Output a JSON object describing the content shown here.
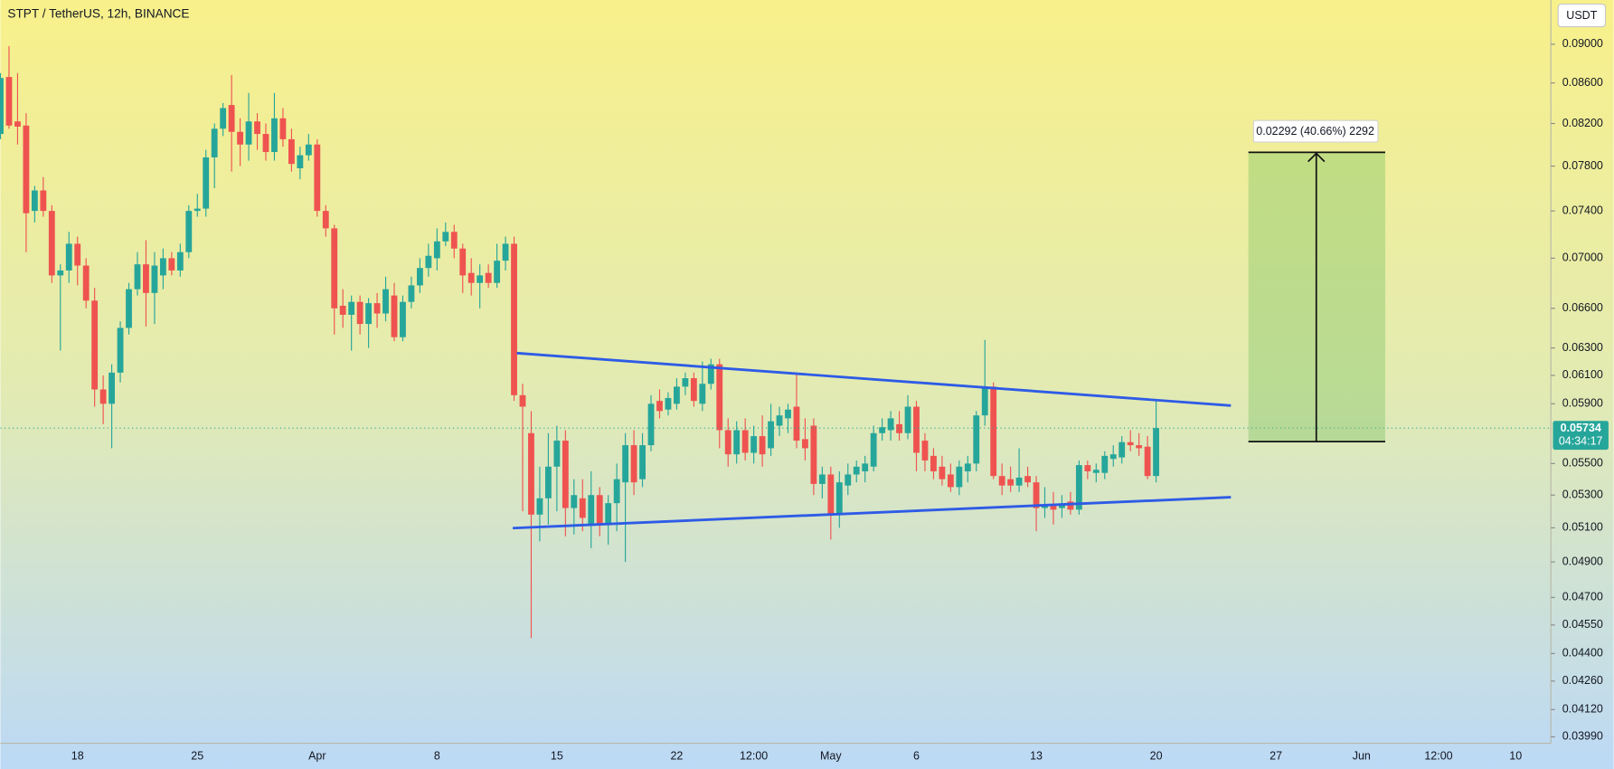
{
  "chart_data": {
    "type": "candlestick",
    "title": "STPT / TetherUS, 12h, BINANCE",
    "currency": "USDT",
    "log_scale": true,
    "grid": false,
    "up_color": "#26a69a",
    "down_color": "#ef5350",
    "last_price": 0.05734,
    "countdown": "04:34:17",
    "measure_label": "0.02292 (40.66%) 2292",
    "ylim": [
      0.0396,
      0.0948
    ],
    "yticks": [
      {
        "value": 0.09,
        "label": "0.09000"
      },
      {
        "value": 0.086,
        "label": "0.08600"
      },
      {
        "value": 0.082,
        "label": "0.08200"
      },
      {
        "value": 0.078,
        "label": "0.07800"
      },
      {
        "value": 0.074,
        "label": "0.07400"
      },
      {
        "value": 0.07,
        "label": "0.07000"
      },
      {
        "value": 0.066,
        "label": "0.06600"
      },
      {
        "value": 0.063,
        "label": "0.06300"
      },
      {
        "value": 0.061,
        "label": "0.06100"
      },
      {
        "value": 0.059,
        "label": "0.05900"
      },
      {
        "value": 0.055,
        "label": "0.05500"
      },
      {
        "value": 0.053,
        "label": "0.05300"
      },
      {
        "value": 0.051,
        "label": "0.05100"
      },
      {
        "value": 0.049,
        "label": "0.04900"
      },
      {
        "value": 0.047,
        "label": "0.04700"
      },
      {
        "value": 0.0455,
        "label": "0.04550"
      },
      {
        "value": 0.044,
        "label": "0.04400"
      },
      {
        "value": 0.0426,
        "label": "0.04260"
      },
      {
        "value": 0.0412,
        "label": "0.04120"
      },
      {
        "value": 0.0399,
        "label": "0.03990"
      }
    ],
    "categories": [
      null,
      null,
      null,
      null,
      null,
      null,
      null,
      null,
      null,
      "18",
      null,
      null,
      null,
      null,
      null,
      null,
      null,
      null,
      null,
      null,
      null,
      null,
      null,
      "25",
      null,
      null,
      null,
      null,
      null,
      null,
      null,
      null,
      null,
      null,
      null,
      null,
      null,
      "Apr",
      null,
      null,
      null,
      null,
      null,
      null,
      null,
      null,
      null,
      null,
      null,
      null,
      null,
      "8",
      null,
      null,
      null,
      null,
      null,
      null,
      null,
      null,
      null,
      null,
      null,
      null,
      null,
      "15",
      null,
      null,
      null,
      null,
      null,
      null,
      null,
      null,
      null,
      null,
      null,
      null,
      null,
      "22",
      null,
      null,
      null,
      null,
      null,
      null,
      null,
      null,
      "12:00",
      null,
      null,
      null,
      null,
      null,
      null,
      null,
      null,
      "May",
      null,
      null,
      null,
      null,
      null,
      null,
      null,
      null,
      null,
      "6",
      null,
      null,
      null,
      null,
      null,
      null,
      null,
      null,
      null,
      null,
      null,
      null,
      null,
      "13",
      null,
      null,
      null,
      null,
      null,
      null,
      null,
      null,
      null,
      null,
      null,
      null,
      null,
      "20",
      null,
      null,
      null,
      null,
      null,
      null,
      null,
      null,
      null,
      null,
      null,
      null,
      null,
      "27",
      null,
      null,
      null,
      null,
      null,
      null,
      null,
      null,
      null,
      "Jun",
      null,
      null,
      null,
      null,
      null,
      null,
      null,
      null,
      "12:00",
      null,
      null,
      null,
      null,
      null,
      null,
      null,
      null,
      "10"
    ],
    "values": [
      [
        0.081,
        0.087,
        0.0805,
        0.0865
      ],
      [
        0.0866,
        0.0898,
        0.0815,
        0.0818
      ],
      [
        0.0822,
        0.087,
        0.08,
        0.0817
      ],
      [
        0.0818,
        0.083,
        0.0705,
        0.0738
      ],
      [
        0.074,
        0.0762,
        0.073,
        0.0758
      ],
      [
        0.0758,
        0.077,
        0.0735,
        0.074
      ],
      [
        0.074,
        0.0745,
        0.068,
        0.0686
      ],
      [
        0.0686,
        0.0695,
        0.0628,
        0.069
      ],
      [
        0.069,
        0.0722,
        0.068,
        0.0712
      ],
      [
        0.0712,
        0.0718,
        0.0678,
        0.0694
      ],
      [
        0.0694,
        0.07,
        0.066,
        0.0666
      ],
      [
        0.0666,
        0.0676,
        0.0588,
        0.06
      ],
      [
        0.06,
        0.061,
        0.0576,
        0.059
      ],
      [
        0.059,
        0.0618,
        0.056,
        0.0612
      ],
      [
        0.0612,
        0.065,
        0.0605,
        0.0645
      ],
      [
        0.0645,
        0.068,
        0.064,
        0.0675
      ],
      [
        0.0675,
        0.0705,
        0.067,
        0.0695
      ],
      [
        0.0695,
        0.0715,
        0.0646,
        0.0672
      ],
      [
        0.0672,
        0.0705,
        0.0648,
        0.0694
      ],
      [
        0.0686,
        0.0708,
        0.0675,
        0.07
      ],
      [
        0.07,
        0.0705,
        0.0686,
        0.069
      ],
      [
        0.069,
        0.0712,
        0.0685,
        0.0705
      ],
      [
        0.0705,
        0.0745,
        0.07,
        0.074
      ],
      [
        0.074,
        0.0755,
        0.0735,
        0.0742
      ],
      [
        0.0742,
        0.0795,
        0.0735,
        0.0788
      ],
      [
        0.0788,
        0.082,
        0.076,
        0.0815
      ],
      [
        0.0815,
        0.084,
        0.0808,
        0.0835
      ],
      [
        0.0838,
        0.0868,
        0.0775,
        0.0812
      ],
      [
        0.0812,
        0.0825,
        0.078,
        0.08
      ],
      [
        0.08,
        0.085,
        0.0785,
        0.0822
      ],
      [
        0.0822,
        0.083,
        0.0795,
        0.081
      ],
      [
        0.081,
        0.082,
        0.0785,
        0.0793
      ],
      [
        0.0793,
        0.085,
        0.0785,
        0.0825
      ],
      [
        0.0825,
        0.0835,
        0.0798,
        0.0805
      ],
      [
        0.0805,
        0.0815,
        0.0775,
        0.0782
      ],
      [
        0.0778,
        0.0798,
        0.0768,
        0.079
      ],
      [
        0.079,
        0.081,
        0.0785,
        0.08
      ],
      [
        0.08,
        0.0805,
        0.0735,
        0.074
      ],
      [
        0.074,
        0.0745,
        0.0718,
        0.0725
      ],
      [
        0.0725,
        0.0728,
        0.064,
        0.066
      ],
      [
        0.0662,
        0.0675,
        0.0645,
        0.0655
      ],
      [
        0.0655,
        0.067,
        0.0628,
        0.0665
      ],
      [
        0.0665,
        0.067,
        0.064,
        0.0648
      ],
      [
        0.0648,
        0.0668,
        0.063,
        0.0664
      ],
      [
        0.0664,
        0.0672,
        0.0645,
        0.0656
      ],
      [
        0.0656,
        0.0685,
        0.065,
        0.0675
      ],
      [
        0.067,
        0.068,
        0.0635,
        0.0638
      ],
      [
        0.0638,
        0.067,
        0.0635,
        0.0665
      ],
      [
        0.0665,
        0.0685,
        0.066,
        0.0678
      ],
      [
        0.0678,
        0.07,
        0.0672,
        0.0692
      ],
      [
        0.0692,
        0.0712,
        0.0685,
        0.0702
      ],
      [
        0.07,
        0.0725,
        0.069,
        0.0714
      ],
      [
        0.0714,
        0.073,
        0.071,
        0.0722
      ],
      [
        0.0722,
        0.0728,
        0.07,
        0.0708
      ],
      [
        0.0708,
        0.0712,
        0.0672,
        0.0686
      ],
      [
        0.0688,
        0.07,
        0.067,
        0.068
      ],
      [
        0.068,
        0.0695,
        0.066,
        0.0686
      ],
      [
        0.0688,
        0.0695,
        0.0676,
        0.068
      ],
      [
        0.068,
        0.0712,
        0.0676,
        0.0698
      ],
      [
        0.0698,
        0.0718,
        0.069,
        0.0712
      ],
      [
        0.0712,
        0.0718,
        0.0592,
        0.0596
      ],
      [
        0.0596,
        0.0604,
        0.052,
        0.0588
      ],
      [
        0.057,
        0.0585,
        0.0448,
        0.0518
      ],
      [
        0.0518,
        0.0548,
        0.0502,
        0.0528
      ],
      [
        0.0528,
        0.057,
        0.0512,
        0.0548
      ],
      [
        0.0548,
        0.0575,
        0.052,
        0.0565
      ],
      [
        0.0565,
        0.0572,
        0.0505,
        0.0522
      ],
      [
        0.0522,
        0.054,
        0.0506,
        0.053
      ],
      [
        0.0528,
        0.054,
        0.0508,
        0.0516
      ],
      [
        0.0512,
        0.0545,
        0.0498,
        0.053
      ],
      [
        0.053,
        0.0535,
        0.0505,
        0.0512
      ],
      [
        0.0512,
        0.053,
        0.05,
        0.0525
      ],
      [
        0.0525,
        0.055,
        0.0508,
        0.054
      ],
      [
        0.0538,
        0.057,
        0.049,
        0.0562
      ],
      [
        0.0562,
        0.0572,
        0.053,
        0.0538
      ],
      [
        0.054,
        0.057,
        0.0535,
        0.0562
      ],
      [
        0.0562,
        0.0596,
        0.0558,
        0.059
      ],
      [
        0.0592,
        0.06,
        0.058,
        0.0585
      ],
      [
        0.0586,
        0.0598,
        0.0582,
        0.0594
      ],
      [
        0.059,
        0.0608,
        0.0586,
        0.0602
      ],
      [
        0.0602,
        0.0612,
        0.0596,
        0.0608
      ],
      [
        0.0608,
        0.0612,
        0.0588,
        0.0592
      ],
      [
        0.059,
        0.062,
        0.0585,
        0.0604
      ],
      [
        0.0604,
        0.0622,
        0.06,
        0.0618
      ],
      [
        0.0618,
        0.0622,
        0.056,
        0.0572
      ],
      [
        0.0572,
        0.058,
        0.0548,
        0.0556
      ],
      [
        0.0556,
        0.0578,
        0.055,
        0.0572
      ],
      [
        0.0572,
        0.058,
        0.0552,
        0.0557
      ],
      [
        0.0557,
        0.0575,
        0.055,
        0.0568
      ],
      [
        0.0568,
        0.0582,
        0.0548,
        0.0556
      ],
      [
        0.056,
        0.059,
        0.0555,
        0.0578
      ],
      [
        0.0575,
        0.0588,
        0.0568,
        0.0582
      ],
      [
        0.058,
        0.059,
        0.057,
        0.0586
      ],
      [
        0.0588,
        0.0612,
        0.056,
        0.0565
      ],
      [
        0.0566,
        0.058,
        0.0552,
        0.056
      ],
      [
        0.0575,
        0.058,
        0.053,
        0.0537
      ],
      [
        0.0537,
        0.0548,
        0.0528,
        0.0543
      ],
      [
        0.0543,
        0.0548,
        0.0503,
        0.0518
      ],
      [
        0.0518,
        0.0545,
        0.051,
        0.0538
      ],
      [
        0.0536,
        0.055,
        0.053,
        0.0543
      ],
      [
        0.0543,
        0.0552,
        0.0538,
        0.0548
      ],
      [
        0.0545,
        0.0555,
        0.0538,
        0.055
      ],
      [
        0.0548,
        0.0575,
        0.0545,
        0.057
      ],
      [
        0.057,
        0.058,
        0.0565,
        0.0574
      ],
      [
        0.0572,
        0.0585,
        0.0565,
        0.058
      ],
      [
        0.0576,
        0.0585,
        0.0565,
        0.057
      ],
      [
        0.057,
        0.0596,
        0.0566,
        0.0588
      ],
      [
        0.0588,
        0.0592,
        0.0545,
        0.0557
      ],
      [
        0.0565,
        0.057,
        0.0545,
        0.0552
      ],
      [
        0.0555,
        0.056,
        0.054,
        0.0545
      ],
      [
        0.0548,
        0.0555,
        0.0536,
        0.054
      ],
      [
        0.0543,
        0.055,
        0.0532,
        0.0535
      ],
      [
        0.0535,
        0.0552,
        0.053,
        0.0548
      ],
      [
        0.0545,
        0.0555,
        0.0538,
        0.055
      ],
      [
        0.055,
        0.0585,
        0.0545,
        0.0582
      ],
      [
        0.0582,
        0.0636,
        0.0575,
        0.0602
      ],
      [
        0.0602,
        0.0605,
        0.054,
        0.0542
      ],
      [
        0.0542,
        0.055,
        0.053,
        0.0536
      ],
      [
        0.054,
        0.0548,
        0.0532,
        0.0536
      ],
      [
        0.0536,
        0.056,
        0.0532,
        0.0541
      ],
      [
        0.0542,
        0.0548,
        0.0535,
        0.0538
      ],
      [
        0.0538,
        0.0542,
        0.0508,
        0.0522
      ],
      [
        0.0522,
        0.0535,
        0.0516,
        0.0524
      ],
      [
        0.0524,
        0.0532,
        0.0512,
        0.0521
      ],
      [
        0.0522,
        0.053,
        0.0516,
        0.0524
      ],
      [
        0.0526,
        0.0532,
        0.0518,
        0.0521
      ],
      [
        0.0521,
        0.0552,
        0.0518,
        0.0549
      ],
      [
        0.0549,
        0.0552,
        0.054,
        0.0545
      ],
      [
        0.0544,
        0.055,
        0.0538,
        0.0546
      ],
      [
        0.0544,
        0.0558,
        0.054,
        0.0555
      ],
      [
        0.0553,
        0.0562,
        0.0548,
        0.0556
      ],
      [
        0.0554,
        0.0568,
        0.055,
        0.0564
      ],
      [
        0.0564,
        0.0572,
        0.0558,
        0.0562
      ],
      [
        0.0562,
        0.057,
        0.0555,
        0.056
      ],
      [
        0.0561,
        0.0568,
        0.054,
        0.0542
      ],
      [
        0.0542,
        0.0592,
        0.0538,
        0.05734
      ],
      null,
      null,
      null,
      null,
      null,
      null,
      null,
      null,
      null,
      null,
      null,
      null,
      null,
      null,
      null,
      null,
      null,
      null,
      null,
      null,
      null,
      null,
      null,
      null,
      null,
      null,
      null,
      null,
      null,
      null,
      null,
      null,
      null,
      null,
      null,
      null,
      null,
      null,
      null,
      null,
      null,
      null
    ]
  }
}
